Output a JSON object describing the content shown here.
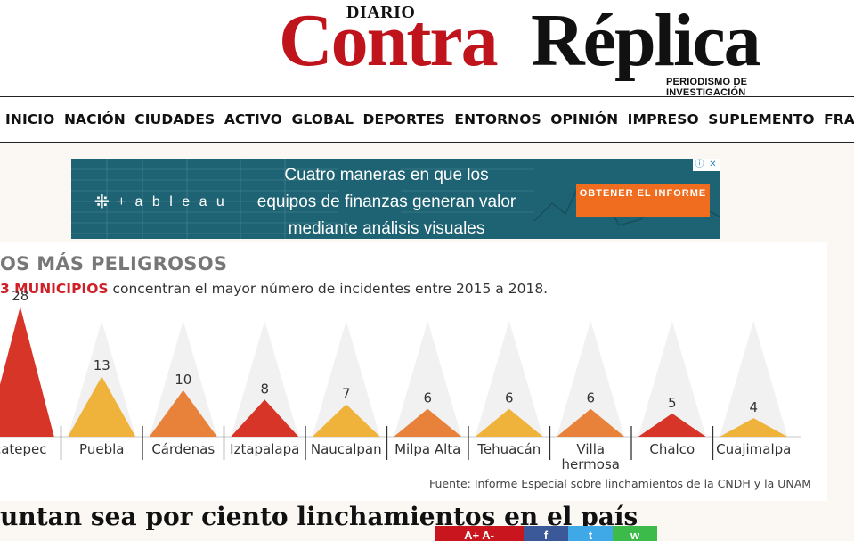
{
  "masthead": {
    "diario": "DIARIO",
    "logo_contra": "Contra",
    "logo_replica": "Réplica",
    "tagline": "PERIODISMO DE INVESTIGACIÓN"
  },
  "nav": {
    "items": [
      "INICIO",
      "NACIÓN",
      "CIUDADES",
      "ACTIVO",
      "GLOBAL",
      "DEPORTES",
      "ENTORNOS",
      "OPINIÓN",
      "IMPRESO",
      "SUPLEMENTO",
      "FRAGMENTOS"
    ]
  },
  "ad": {
    "brand": "+ a b l e a u",
    "headline_1": "Cuatro maneras en que los",
    "headline_2": "equipos de finanzas generan valor",
    "headline_3": "mediante análisis visuales",
    "cta": "OBTENER EL INFORME",
    "adchoice_info": "ⓘ",
    "adchoice_close": "✕",
    "colors": {
      "background": "#1e6373",
      "cta": "#f06d1f"
    }
  },
  "infographic": {
    "title": "OS MÁS PELIGROSOS",
    "subtitle_red": "3 MUNICIPIOS",
    "subtitle_rest": " concentran el mayor número de incidentes entre 2015 a 2018.",
    "source": "Fuente: Informe Especial sobre linchamientos de la CNDH y la UNAM"
  },
  "chart_data": {
    "type": "bar",
    "title": "OS MÁS PELIGROSOS",
    "categories": [
      "catepec",
      "Puebla",
      "Cárdenas",
      "Iztapalapa",
      "Naucalpan",
      "Milpa Alta",
      "Tehuacán",
      "Villa hermosa",
      "Chalco",
      "Cuajimalpa"
    ],
    "category_lines": [
      [
        "catepec"
      ],
      [
        "Puebla"
      ],
      [
        "Cárdenas"
      ],
      [
        "Iztapalapa"
      ],
      [
        "Naucalpan"
      ],
      [
        "Milpa Alta"
      ],
      [
        "Tehuacán"
      ],
      [
        "Villa",
        "hermosa"
      ],
      [
        "Chalco"
      ],
      [
        "Cuajimalpa"
      ]
    ],
    "values": [
      28,
      13,
      10,
      8,
      7,
      6,
      6,
      6,
      5,
      4
    ],
    "colors": [
      "#d63527",
      "#efb23a",
      "#e8823a",
      "#d63527",
      "#efb23a",
      "#e8823a",
      "#efb23a",
      "#e8823a",
      "#d63527",
      "#efb23a"
    ],
    "ylim": [
      0,
      28
    ],
    "grid": true
  },
  "article": {
    "headline": "untan sea por ciento linchamientos en el país"
  },
  "share": {
    "font_label": "A+ A-",
    "facebook": "f",
    "twitter": "t",
    "whatsapp": "w"
  }
}
